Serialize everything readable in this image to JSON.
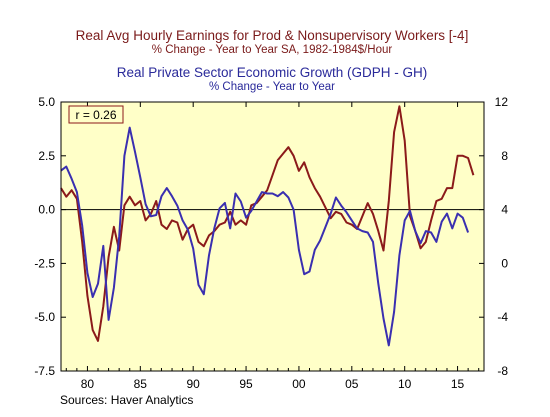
{
  "chart_data": {
    "type": "line",
    "titles": {
      "line1": "Real Avg Hourly Earnings for Prod & Nonsupervisory Workers [-4]",
      "line2": "% Change - Year to Year    SA, 1982-1984$/Hour",
      "line3": "Real Private Sector Economic Growth (GDPH - GH)",
      "line4": "% Change - Year to Year"
    },
    "source": "Sources:   Haver Analytics",
    "annotation": "r = 0.26",
    "colors": {
      "background": "#ffffff",
      "plot_background": "#ffffc8",
      "earnings": "#8b1a1a",
      "gdp": "#3a2fb0",
      "zero_line": "#000000",
      "title_earnings": "#7a1a1a",
      "title_gdp": "#2a2a9a"
    },
    "x_axis": {
      "range": [
        1977.5,
        2017.5
      ],
      "ticks": [
        1980,
        1985,
        1990,
        1995,
        2000,
        2005,
        2010,
        2015
      ],
      "tick_labels": [
        "80",
        "85",
        "90",
        "95",
        "00",
        "05",
        "10",
        "15"
      ]
    },
    "y_left": {
      "range": [
        -7.5,
        5.0
      ],
      "ticks": [
        5.0,
        2.5,
        0.0,
        -2.5,
        -5.0,
        -7.5
      ],
      "tick_labels": [
        "5.0",
        "2.5",
        "0.0",
        "-2.5",
        "-5.0",
        "-7.5"
      ]
    },
    "y_right": {
      "range": [
        -8,
        12
      ],
      "ticks": [
        12,
        8,
        4,
        0,
        -4,
        -8
      ],
      "tick_labels": [
        "12",
        "8",
        "4",
        "0",
        "-4",
        "-8"
      ]
    },
    "grid": false,
    "series": [
      {
        "axis": "left",
        "x": [
          1977.5,
          1978.0,
          1978.5,
          1979.0,
          1979.5,
          1980.0,
          1980.5,
          1981.0,
          1981.5,
          1982.0,
          1982.5,
          1983.0,
          1983.5,
          1984.0,
          1984.5,
          1985.0,
          1985.5,
          1986.0,
          1986.5,
          1987.0,
          1987.5,
          1988.0,
          1988.5,
          1989.0,
          1989.5,
          1990.0,
          1990.5,
          1991.0,
          1991.5,
          1992.0,
          1992.5,
          1993.0,
          1993.5,
          1994.0,
          1994.5,
          1995.0,
          1995.5,
          1996.0,
          1996.5,
          1997.0,
          1997.5,
          1998.0,
          1998.5,
          1999.0,
          1999.5,
          2000.0,
          2000.5,
          2001.0,
          2001.5,
          2002.0,
          2002.5,
          2003.0,
          2003.5,
          2004.0,
          2004.5,
          2005.0,
          2005.5,
          2006.0,
          2006.5,
          2007.0,
          2007.5,
          2008.0,
          2008.5,
          2009.0,
          2009.5,
          2010.0,
          2010.5,
          2011.0,
          2011.5,
          2012.0,
          2012.5,
          2013.0,
          2013.5,
          2014.0,
          2014.5,
          2015.0,
          2015.5,
          2016.0,
          2016.5
        ],
        "y": [
          1.0,
          0.6,
          0.9,
          0.5,
          -1.5,
          -4.0,
          -5.6,
          -6.1,
          -4.5,
          -2.2,
          -0.8,
          -1.9,
          0.2,
          0.6,
          0.2,
          0.4,
          -0.5,
          -0.2,
          0.4,
          -0.7,
          -0.9,
          -0.5,
          -0.6,
          -1.4,
          -0.9,
          -0.7,
          -1.5,
          -1.7,
          -1.2,
          -1.0,
          -0.7,
          -0.6,
          -0.1,
          -0.7,
          -0.5,
          -0.7,
          0.2,
          0.3,
          0.6,
          0.9,
          1.6,
          2.3,
          2.6,
          2.9,
          2.5,
          1.8,
          2.2,
          1.5,
          1.0,
          0.6,
          0.1,
          -0.4,
          -0.1,
          -0.2,
          -0.6,
          -0.7,
          -0.9,
          -0.3,
          0.3,
          -0.2,
          -1.0,
          -1.9,
          0.4,
          3.6,
          4.8,
          3.2,
          -0.3,
          -1.0,
          -1.8,
          -1.5,
          -0.5,
          0.4,
          0.5,
          1.0,
          1.0,
          2.5,
          2.5,
          2.4,
          1.6
        ]
      },
      {
        "axis": "right",
        "x": [
          1977.5,
          1978.0,
          1978.5,
          1979.0,
          1979.5,
          1980.0,
          1980.5,
          1981.0,
          1981.5,
          1982.0,
          1982.5,
          1983.0,
          1983.5,
          1984.0,
          1984.5,
          1985.0,
          1985.5,
          1986.0,
          1986.5,
          1987.0,
          1987.5,
          1988.0,
          1988.5,
          1989.0,
          1989.5,
          1990.0,
          1990.5,
          1991.0,
          1991.5,
          1992.0,
          1992.5,
          1993.0,
          1993.5,
          1994.0,
          1994.5,
          1995.0,
          1995.5,
          1996.0,
          1996.5,
          1997.0,
          1997.5,
          1998.0,
          1998.5,
          1999.0,
          1999.5,
          2000.0,
          2000.5,
          2001.0,
          2001.5,
          2002.0,
          2002.5,
          2003.0,
          2003.5,
          2004.0,
          2004.5,
          2005.0,
          2005.5,
          2006.0,
          2006.5,
          2007.0,
          2007.5,
          2008.0,
          2008.5,
          2009.0,
          2009.5,
          2010.0,
          2010.5,
          2011.0,
          2011.5,
          2012.0,
          2012.5,
          2013.0,
          2013.5,
          2014.0,
          2014.5,
          2015.0,
          2015.5,
          2016.0
        ],
        "y": [
          6.9,
          7.2,
          6.3,
          5.3,
          2.8,
          -0.7,
          -2.5,
          -1.5,
          1.3,
          -4.2,
          -1.8,
          2.0,
          8.0,
          10.1,
          8.3,
          6.4,
          4.4,
          3.5,
          3.6,
          5.0,
          5.6,
          5.0,
          4.3,
          3.2,
          2.5,
          1.1,
          -1.6,
          -2.3,
          0.6,
          2.6,
          4.1,
          4.5,
          2.6,
          5.2,
          4.6,
          3.4,
          3.9,
          4.6,
          5.3,
          5.2,
          5.2,
          5.0,
          5.3,
          4.9,
          4.0,
          1.0,
          -0.8,
          -0.6,
          1.0,
          1.7,
          2.7,
          3.7,
          4.9,
          4.3,
          3.8,
          3.2,
          2.6,
          2.4,
          2.3,
          1.6,
          -1.5,
          -4.1,
          -6.1,
          -3.6,
          0.6,
          3.2,
          3.9,
          2.4,
          1.5,
          2.4,
          2.3,
          1.6,
          3.1,
          3.7,
          2.6,
          3.7,
          3.4,
          2.3
        ]
      }
    ]
  }
}
